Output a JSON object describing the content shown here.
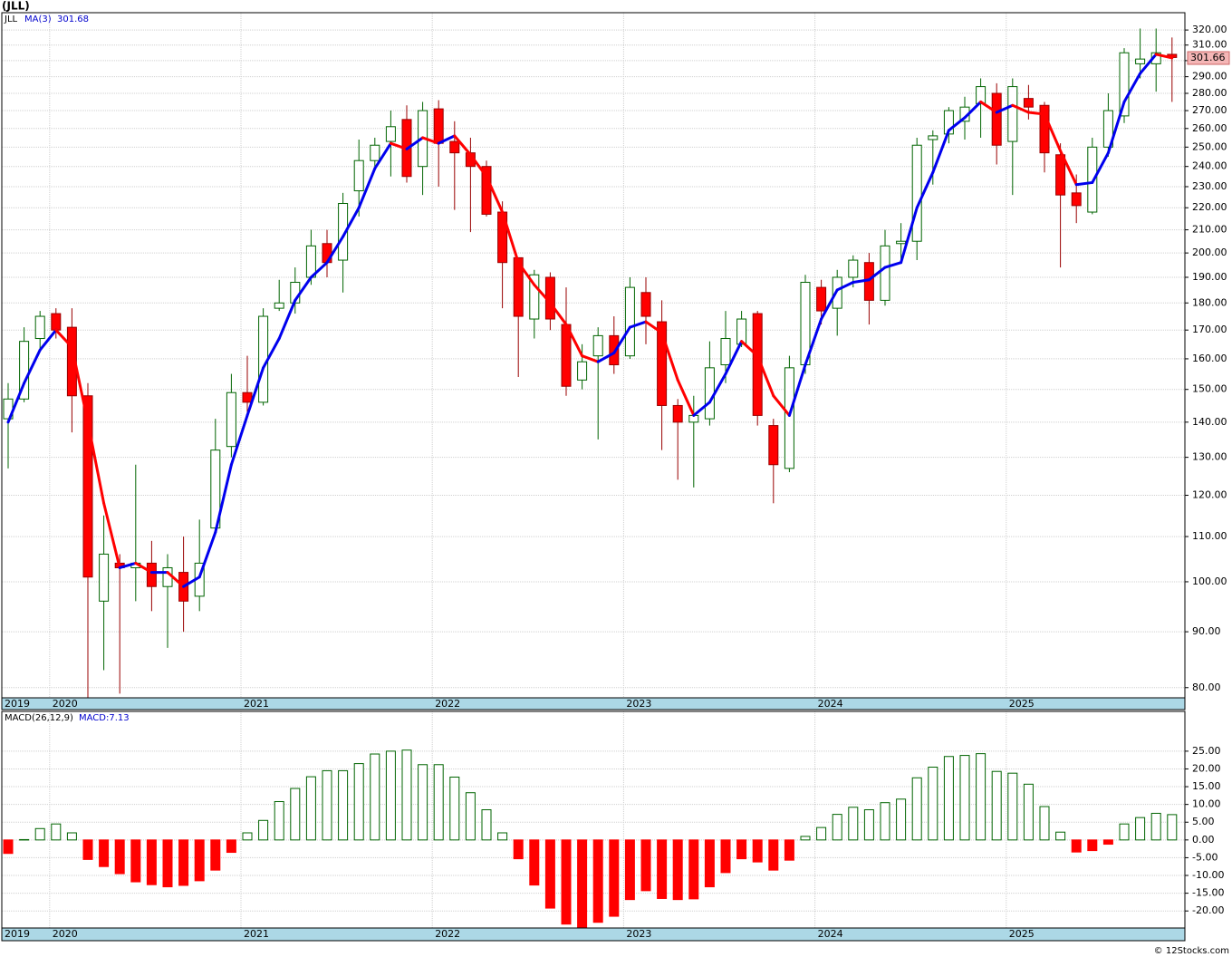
{
  "chart_data": {
    "type": "candlestick",
    "title": "(JLL)",
    "ticker": "JLL",
    "ma_label": "MA(3)",
    "ma_last": "301.68",
    "last_price": 301.66,
    "macd_title": "MACD(26,12,9)",
    "macd_label": "MACD:7.13",
    "credit": "© 12Stocks.com",
    "log_scale": true,
    "grid": true,
    "up_color": "#006400",
    "down_color": "#ff0000",
    "ma_up_color": "#0000ee",
    "ma_down_color": "#ff0000",
    "categories": [
      "2019",
      null,
      null,
      "2020",
      null,
      null,
      null,
      null,
      null,
      null,
      null,
      null,
      null,
      null,
      null,
      "2021",
      null,
      null,
      null,
      null,
      null,
      null,
      null,
      null,
      null,
      null,
      null,
      "2022",
      null,
      null,
      null,
      null,
      null,
      null,
      null,
      null,
      null,
      null,
      null,
      "2023",
      null,
      null,
      null,
      null,
      null,
      null,
      null,
      null,
      null,
      null,
      null,
      "2024",
      null,
      null,
      null,
      null,
      null,
      null,
      null,
      null,
      null,
      null,
      null,
      "2025",
      null,
      null,
      null,
      null,
      null,
      null,
      null,
      null,
      null,
      null
    ],
    "open": [
      141,
      147,
      167,
      176,
      171,
      148,
      96,
      104,
      103,
      104,
      99,
      102,
      97,
      112,
      133,
      149,
      146,
      178,
      180,
      190,
      204,
      197,
      228,
      243,
      253,
      265,
      240,
      271,
      253,
      247,
      240,
      218,
      198,
      174,
      190,
      172,
      153,
      161,
      168,
      161,
      184,
      173,
      145,
      140,
      141,
      158,
      165,
      176,
      139,
      127,
      158,
      186,
      178,
      190,
      196,
      181,
      204,
      205,
      254,
      257,
      264,
      274,
      280,
      253,
      277,
      273,
      246,
      227,
      218,
      250,
      267,
      298,
      298,
      304
    ],
    "high": [
      152,
      171,
      177,
      178,
      178,
      152,
      115,
      106,
      128,
      109,
      106,
      110,
      114,
      141,
      155,
      161,
      178,
      189,
      194,
      210,
      210,
      227,
      254,
      255,
      270,
      273,
      275,
      276,
      264,
      255,
      243,
      223,
      198,
      193,
      192,
      186,
      165,
      171,
      175,
      190,
      190,
      181,
      147,
      148,
      166,
      177,
      177,
      177,
      141,
      161,
      191,
      189,
      193,
      199,
      200,
      210,
      213,
      255,
      259,
      272,
      278,
      289,
      286,
      289,
      285,
      275,
      252,
      236,
      255,
      280,
      308,
      321,
      321,
      315
    ],
    "low": [
      127,
      146,
      163,
      167,
      137,
      78,
      83,
      79,
      96,
      94,
      87,
      90,
      94,
      111,
      130,
      143,
      145,
      177,
      176,
      187,
      190,
      184,
      216,
      238,
      235,
      232,
      226,
      230,
      219,
      209,
      216,
      178,
      154,
      167,
      170,
      148,
      150,
      135,
      155,
      160,
      165,
      132,
      124,
      122,
      139,
      152,
      164,
      139,
      118,
      126,
      155,
      172,
      168,
      186,
      172,
      179,
      196,
      197,
      231,
      252,
      254,
      255,
      241,
      226,
      265,
      237,
      194,
      213,
      217,
      245,
      263,
      289,
      281,
      275
    ],
    "close": [
      147,
      166,
      175,
      170,
      148,
      101,
      106,
      103,
      104,
      99,
      103,
      96,
      104,
      132,
      149,
      146,
      175,
      180,
      188,
      203,
      196,
      222,
      243,
      251,
      261,
      235,
      270,
      252,
      247,
      240,
      217,
      196,
      175,
      191,
      174,
      151,
      159,
      168,
      158,
      186,
      175,
      145,
      140,
      142,
      157,
      167,
      174,
      142,
      128,
      157,
      188,
      177,
      190,
      197,
      181,
      203,
      205,
      251,
      256,
      270,
      272,
      284,
      251,
      284,
      272,
      247,
      226,
      221,
      250,
      270,
      305,
      301,
      305,
      302
    ],
    "ma": [
      140,
      152,
      163,
      170,
      164,
      140,
      118,
      103,
      104,
      102,
      102,
      99,
      101,
      111,
      128,
      142,
      157,
      167,
      181,
      190,
      196,
      207,
      220,
      239,
      252,
      249,
      255,
      252,
      256,
      246,
      235,
      218,
      196,
      187,
      180,
      172,
      161,
      159,
      162,
      171,
      173,
      169,
      153,
      142,
      146,
      155,
      166,
      161,
      148,
      142,
      158,
      174,
      185,
      188,
      189,
      194,
      196,
      220,
      237,
      259,
      266,
      275,
      269,
      273,
      269,
      268,
      248,
      231,
      232,
      247,
      275,
      292,
      304,
      301.68
    ],
    "macd": [
      -3.8,
      0.1,
      3.2,
      4.5,
      2,
      -5.5,
      -7.5,
      -9.5,
      -11.8,
      -12.6,
      -13.2,
      -12.8,
      -11.5,
      -8.5,
      -3.5,
      2,
      5.5,
      10.8,
      14.5,
      17.8,
      19.5,
      19.5,
      21.5,
      24.2,
      25,
      25.3,
      21.2,
      21.2,
      17.7,
      13.3,
      8.5,
      2,
      -5.3,
      -12.7,
      -19.2,
      -23.7,
      -24.6,
      -23.2,
      -21.5,
      -16.8,
      -14.3,
      -16.5,
      -16.8,
      -16.6,
      -13.2,
      -9.2,
      -5.3,
      -6.2,
      -8.5,
      -5.7,
      1,
      3.5,
      7.2,
      9.2,
      8.5,
      10.5,
      11.5,
      17.5,
      20.5,
      23.5,
      23.8,
      24.3,
      19.3,
      18.8,
      15.7,
      9.4,
      2.2,
      -3.4,
      -3,
      -1.2,
      4.5,
      6.3,
      7.5,
      7.13
    ],
    "ylim": [
      78.3,
      331.9
    ],
    "yticks": [
      {
        "value": 80,
        "label": "80.00"
      },
      {
        "value": 90,
        "label": "90.00"
      },
      {
        "value": 100,
        "label": "100.00"
      },
      {
        "value": 110,
        "label": "110.00"
      },
      {
        "value": 120,
        "label": "120.00"
      },
      {
        "value": 130,
        "label": "130.00"
      },
      {
        "value": 140,
        "label": "140.00"
      },
      {
        "value": 150,
        "label": "150.00"
      },
      {
        "value": 160,
        "label": "160.00"
      },
      {
        "value": 170,
        "label": "170.00"
      },
      {
        "value": 180,
        "label": "180.00"
      },
      {
        "value": 190,
        "label": "190.00"
      },
      {
        "value": 200,
        "label": "200.00"
      },
      {
        "value": 210,
        "label": "210.00"
      },
      {
        "value": 220,
        "label": "220.00"
      },
      {
        "value": 230,
        "label": "230.00"
      },
      {
        "value": 240,
        "label": "240.00"
      },
      {
        "value": 250,
        "label": "250.00"
      },
      {
        "value": 260,
        "label": "260.00"
      },
      {
        "value": 270,
        "label": "270.00"
      },
      {
        "value": 280,
        "label": "280.00"
      },
      {
        "value": 290,
        "label": "290.00"
      },
      {
        "value": 300,
        "label": "300.00"
      },
      {
        "value": 310,
        "label": "310.00"
      },
      {
        "value": 320,
        "label": "320.00"
      }
    ],
    "y2lim": [
      -24.8,
      36.2
    ],
    "y2ticks": [
      {
        "value": -20,
        "label": "-20.00"
      },
      {
        "value": -15,
        "label": "-15.00"
      },
      {
        "value": -10,
        "label": "-10.00"
      },
      {
        "value": -5,
        "label": "-5.00"
      },
      {
        "value": 0,
        "label": "0.00"
      },
      {
        "value": 5,
        "label": "5.00"
      },
      {
        "value": 10,
        "label": "10.00"
      },
      {
        "value": 15,
        "label": "15.00"
      },
      {
        "value": 20,
        "label": "20.00"
      },
      {
        "value": 25,
        "label": "25.00"
      }
    ]
  }
}
